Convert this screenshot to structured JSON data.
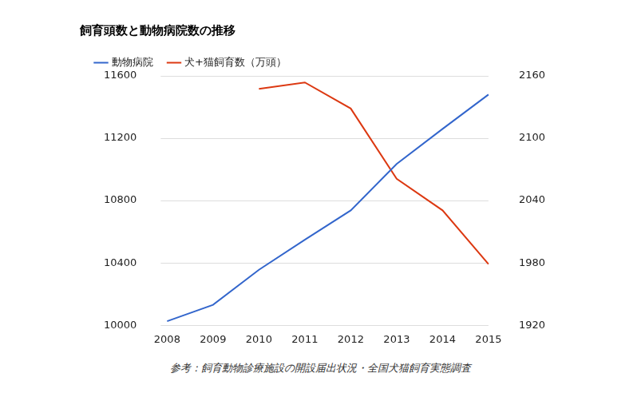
{
  "chart_data": {
    "type": "line",
    "title": "飼育頭数と動物病院数の推移",
    "annotations": [
      "参考：飼育動物診療施設の開設届出状況・全国犬猫飼育実態調査"
    ],
    "categories": [
      "2008",
      "2009",
      "2010",
      "2011",
      "2012",
      "2013",
      "2014",
      "2015"
    ],
    "series": [
      {
        "name": "動物病院",
        "color": "#3366cc",
        "marker": "none",
        "values": [
          10026,
          10131,
          10356,
          10549,
          10737,
          11035,
          11260,
          11480
        ]
      },
      {
        "name": "犬+猫飼育数（万頭）",
        "color": "#dc3912",
        "marker": "none",
        "axis": "y2",
        "values": [
          null,
          null,
          2147.5,
          2153.7,
          2128.6,
          2061,
          2030.6,
          1978.8
        ]
      }
    ],
    "ylim": [
      10000,
      11600
    ],
    "yticks": [
      10000,
      10400,
      10800,
      11200,
      11600
    ],
    "y2lim": [
      1920,
      2160
    ],
    "y2ticks": [
      1920,
      1980,
      2040,
      2100,
      2160
    ],
    "grid": true,
    "legend": "top-left"
  }
}
